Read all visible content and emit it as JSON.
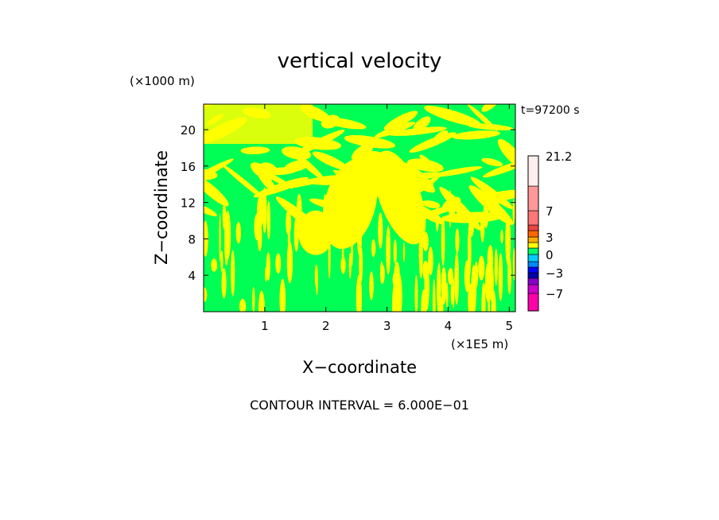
{
  "chart_data": {
    "type": "heatmap",
    "title": "vertical velocity",
    "xlabel": "X−coordinate",
    "ylabel": "Z−coordinate",
    "x_unit": "(×1E5 m)",
    "y_unit": "(×1000 m)",
    "time_label": "t=97200 s",
    "footer": "CONTOUR INTERVAL = 6.000E−01",
    "xlim": [
      0,
      5.1
    ],
    "ylim": [
      0,
      22.8
    ],
    "x_ticks": [
      {
        "value": 1,
        "label": "1"
      },
      {
        "value": 2,
        "label": "2"
      },
      {
        "value": 3,
        "label": "3"
      },
      {
        "value": 4,
        "label": "4"
      },
      {
        "value": 5,
        "label": "5"
      }
    ],
    "y_ticks": [
      {
        "value": 4,
        "label": "4"
      },
      {
        "value": 8,
        "label": "8"
      },
      {
        "value": 12,
        "label": "12"
      },
      {
        "value": 16,
        "label": "16"
      },
      {
        "value": 20,
        "label": "20"
      }
    ],
    "colors": {
      "field_positive": "#ffff00",
      "field_negative": "#00ff55"
    },
    "colorbar": {
      "range": [
        -10,
        21.2
      ],
      "levels": [
        {
          "from": -10,
          "to": -7,
          "color": "#ff00aa"
        },
        {
          "from": -7,
          "to": -5,
          "color": "#cc00cc"
        },
        {
          "from": -5,
          "to": -4,
          "color": "#8800cc"
        },
        {
          "from": -4,
          "to": -3,
          "color": "#0000aa"
        },
        {
          "from": -3,
          "to": -2,
          "color": "#0000ff"
        },
        {
          "from": -2,
          "to": -1,
          "color": "#0088ff"
        },
        {
          "from": -1,
          "to": 0,
          "color": "#00ccff"
        },
        {
          "from": 0,
          "to": 1,
          "color": "#00ff66"
        },
        {
          "from": 1,
          "to": 2,
          "color": "#ffff00"
        },
        {
          "from": 2,
          "to": 3,
          "color": "#ffaa00"
        },
        {
          "from": 3,
          "to": 4,
          "color": "#ff6600"
        },
        {
          "from": 4,
          "to": 5,
          "color": "#ee4444"
        },
        {
          "from": 5,
          "to": 7,
          "color": "#ff7777"
        },
        {
          "from": 7,
          "to": 10,
          "color": "#ff9999"
        },
        {
          "from": 10,
          "to": 14,
          "color": "#ffbbbb"
        },
        {
          "from": 14,
          "to": 21.2,
          "color": "#ffeeee"
        }
      ],
      "tick_labels": [
        {
          "value": 21.2,
          "label": "21.2"
        },
        {
          "value": 7,
          "label": "7"
        },
        {
          "value": 3,
          "label": "3"
        },
        {
          "value": 0,
          "label": "0"
        },
        {
          "value": -3,
          "label": "−3"
        },
        {
          "value": -7,
          "label": "−7"
        }
      ]
    }
  }
}
